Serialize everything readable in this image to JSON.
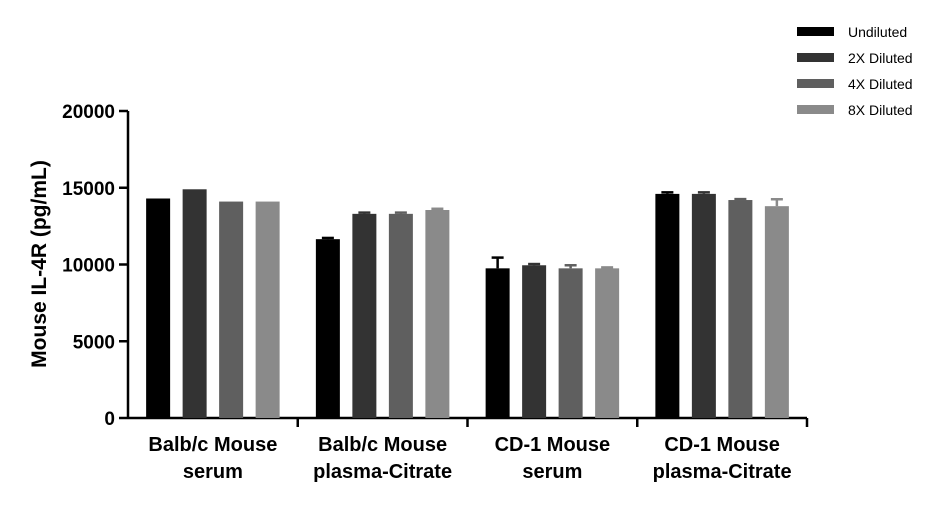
{
  "chart_data": {
    "type": "bar",
    "ylabel": "Mouse IL-4R (pg/mL)",
    "ylim": [
      0,
      20000
    ],
    "yticks": [
      0,
      5000,
      10000,
      15000,
      20000
    ],
    "grid": false,
    "legend_position": "top-right",
    "categories": [
      [
        "Balb/c Mouse",
        "serum"
      ],
      [
        "Balb/c Mouse",
        "plasma-Citrate"
      ],
      [
        "CD-1 Mouse",
        "serum"
      ],
      [
        "CD-1 Mouse",
        "plasma-Citrate"
      ]
    ],
    "series": [
      {
        "name": "Undiluted",
        "color": "#000000",
        "values": [
          14300,
          11650,
          9750,
          14600
        ],
        "errors": [
          0,
          80,
          700,
          100
        ]
      },
      {
        "name": "2X Diluted",
        "color": "#333333",
        "values": [
          14900,
          13300,
          9950,
          14600
        ],
        "errors": [
          0,
          80,
          80,
          100
        ]
      },
      {
        "name": "4X Diluted",
        "color": "#5f5f5f",
        "values": [
          14100,
          13300,
          9750,
          14200
        ],
        "errors": [
          0,
          80,
          200,
          60
        ]
      },
      {
        "name": "8X Diluted",
        "color": "#8a8a8a",
        "values": [
          14100,
          13550,
          9750,
          13800
        ],
        "errors": [
          0,
          80,
          60,
          450
        ]
      }
    ]
  }
}
